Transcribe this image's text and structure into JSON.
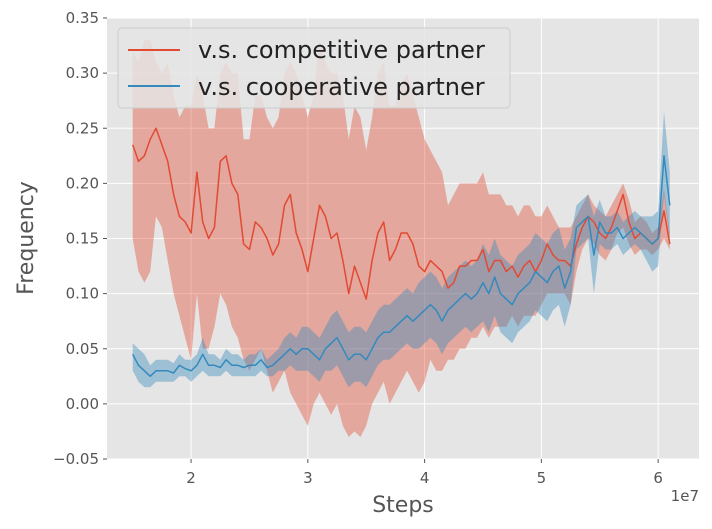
{
  "chart_data": {
    "type": "line",
    "xlabel": "Steps",
    "ylabel": "Frequency",
    "x_offset_label": "1e7",
    "xlim": [
      1.28,
      6.35
    ],
    "ylim": [
      -0.05,
      0.35
    ],
    "xticks": [
      2,
      3,
      4,
      5,
      6
    ],
    "xtick_labels": [
      "2",
      "3",
      "4",
      "5",
      "6"
    ],
    "yticks": [
      -0.05,
      0.0,
      0.05,
      0.1,
      0.15,
      0.2,
      0.25,
      0.3,
      0.35
    ],
    "ytick_labels": [
      "−0.05",
      "0.00",
      "0.05",
      "0.10",
      "0.15",
      "0.20",
      "0.25",
      "0.30",
      "0.35"
    ],
    "grid": true,
    "legend_position": "upper-left",
    "background": "#e5e5e5",
    "series": [
      {
        "name": "v.s. competitive partner",
        "color": "#e24a33",
        "x": [
          1.5,
          1.55,
          1.6,
          1.65,
          1.7,
          1.75,
          1.8,
          1.85,
          1.9,
          1.95,
          2.0,
          2.05,
          2.1,
          2.15,
          2.2,
          2.25,
          2.3,
          2.35,
          2.4,
          2.45,
          2.5,
          2.55,
          2.6,
          2.65,
          2.7,
          2.75,
          2.8,
          2.85,
          2.9,
          2.95,
          3.0,
          3.05,
          3.1,
          3.15,
          3.2,
          3.25,
          3.3,
          3.35,
          3.4,
          3.45,
          3.5,
          3.55,
          3.6,
          3.65,
          3.7,
          3.75,
          3.8,
          3.85,
          3.9,
          3.95,
          4.0,
          4.05,
          4.1,
          4.15,
          4.2,
          4.25,
          4.3,
          4.35,
          4.4,
          4.45,
          4.5,
          4.55,
          4.6,
          4.65,
          4.7,
          4.75,
          4.8,
          4.85,
          4.9,
          4.95,
          5.0,
          5.05,
          5.1,
          5.15,
          5.2,
          5.25,
          5.3,
          5.35,
          5.4,
          5.45,
          5.5,
          5.55,
          5.6,
          5.65,
          5.7,
          5.75,
          5.8,
          5.85,
          5.9,
          5.95,
          6.0,
          6.05,
          6.1
        ],
        "mean": [
          0.235,
          0.22,
          0.225,
          0.24,
          0.25,
          0.235,
          0.22,
          0.19,
          0.17,
          0.165,
          0.155,
          0.21,
          0.165,
          0.15,
          0.16,
          0.22,
          0.225,
          0.2,
          0.19,
          0.145,
          0.14,
          0.165,
          0.16,
          0.15,
          0.135,
          0.145,
          0.18,
          0.19,
          0.155,
          0.14,
          0.12,
          0.15,
          0.18,
          0.17,
          0.15,
          0.155,
          0.13,
          0.1,
          0.125,
          0.11,
          0.095,
          0.13,
          0.155,
          0.165,
          0.13,
          0.14,
          0.155,
          0.155,
          0.145,
          0.125,
          0.12,
          0.13,
          0.125,
          0.12,
          0.105,
          0.11,
          0.125,
          0.125,
          0.13,
          0.13,
          0.14,
          0.12,
          0.13,
          0.13,
          0.12,
          0.125,
          0.115,
          0.125,
          0.13,
          0.12,
          0.13,
          0.145,
          0.135,
          0.13,
          0.13,
          0.125,
          0.145,
          0.16,
          0.17,
          0.165,
          0.155,
          0.15,
          0.16,
          0.175,
          0.19,
          0.165,
          0.15,
          0.155,
          0.15,
          0.145,
          0.15,
          0.175,
          0.145
        ],
        "lower": [
          0.15,
          0.12,
          0.11,
          0.12,
          0.17,
          0.16,
          0.13,
          0.1,
          0.08,
          0.06,
          0.04,
          0.1,
          0.05,
          0.05,
          0.07,
          0.1,
          0.09,
          0.07,
          0.06,
          0.04,
          0.03,
          0.04,
          0.05,
          0.03,
          0.01,
          0.02,
          0.03,
          0.01,
          0.0,
          -0.01,
          -0.02,
          0.0,
          0.01,
          0.0,
          -0.01,
          0.0,
          -0.02,
          -0.03,
          -0.025,
          -0.03,
          -0.02,
          0.0,
          0.01,
          0.02,
          0.0,
          0.01,
          0.02,
          0.03,
          0.02,
          0.01,
          0.02,
          0.04,
          0.03,
          0.03,
          0.04,
          0.04,
          0.05,
          0.05,
          0.06,
          0.06,
          0.07,
          0.06,
          0.07,
          0.07,
          0.07,
          0.08,
          0.07,
          0.08,
          0.08,
          0.08,
          0.09,
          0.1,
          0.1,
          0.1,
          0.1,
          0.09,
          0.12,
          0.14,
          0.15,
          0.145,
          0.135,
          0.13,
          0.14,
          0.155,
          0.16,
          0.145,
          0.135,
          0.14,
          0.14,
          0.135,
          0.14,
          0.15,
          0.14
        ],
        "upper": [
          0.32,
          0.31,
          0.33,
          0.33,
          0.31,
          0.3,
          0.31,
          0.28,
          0.26,
          0.27,
          0.27,
          0.3,
          0.28,
          0.25,
          0.25,
          0.3,
          0.31,
          0.3,
          0.3,
          0.24,
          0.24,
          0.28,
          0.28,
          0.26,
          0.25,
          0.26,
          0.3,
          0.31,
          0.3,
          0.28,
          0.26,
          0.28,
          0.33,
          0.31,
          0.3,
          0.3,
          0.28,
          0.24,
          0.27,
          0.26,
          0.23,
          0.26,
          0.3,
          0.31,
          0.27,
          0.27,
          0.29,
          0.3,
          0.28,
          0.26,
          0.24,
          0.23,
          0.22,
          0.21,
          0.18,
          0.19,
          0.2,
          0.2,
          0.2,
          0.2,
          0.21,
          0.19,
          0.19,
          0.19,
          0.18,
          0.18,
          0.17,
          0.18,
          0.18,
          0.17,
          0.17,
          0.18,
          0.17,
          0.16,
          0.16,
          0.16,
          0.17,
          0.18,
          0.19,
          0.18,
          0.175,
          0.17,
          0.18,
          0.19,
          0.2,
          0.185,
          0.165,
          0.17,
          0.165,
          0.155,
          0.16,
          0.195,
          0.155
        ]
      },
      {
        "name": "v.s. cooperative partner",
        "color": "#348abd",
        "x": [
          1.5,
          1.55,
          1.6,
          1.65,
          1.7,
          1.75,
          1.8,
          1.85,
          1.9,
          1.95,
          2.0,
          2.05,
          2.1,
          2.15,
          2.2,
          2.25,
          2.3,
          2.35,
          2.4,
          2.45,
          2.5,
          2.55,
          2.6,
          2.65,
          2.7,
          2.75,
          2.8,
          2.85,
          2.9,
          2.95,
          3.0,
          3.05,
          3.1,
          3.15,
          3.2,
          3.25,
          3.3,
          3.35,
          3.4,
          3.45,
          3.5,
          3.55,
          3.6,
          3.65,
          3.7,
          3.75,
          3.8,
          3.85,
          3.9,
          3.95,
          4.0,
          4.05,
          4.1,
          4.15,
          4.2,
          4.25,
          4.3,
          4.35,
          4.4,
          4.45,
          4.5,
          4.55,
          4.6,
          4.65,
          4.7,
          4.75,
          4.8,
          4.85,
          4.9,
          4.95,
          5.0,
          5.05,
          5.1,
          5.15,
          5.2,
          5.25,
          5.3,
          5.35,
          5.4,
          5.45,
          5.5,
          5.55,
          5.6,
          5.65,
          5.7,
          5.75,
          5.8,
          5.85,
          5.9,
          5.95,
          6.0,
          6.05,
          6.1
        ],
        "mean": [
          0.045,
          0.035,
          0.03,
          0.025,
          0.03,
          0.03,
          0.03,
          0.028,
          0.035,
          0.032,
          0.03,
          0.035,
          0.045,
          0.035,
          0.035,
          0.033,
          0.04,
          0.035,
          0.035,
          0.033,
          0.035,
          0.035,
          0.04,
          0.033,
          0.035,
          0.04,
          0.045,
          0.05,
          0.045,
          0.05,
          0.05,
          0.045,
          0.04,
          0.05,
          0.055,
          0.06,
          0.05,
          0.04,
          0.045,
          0.045,
          0.04,
          0.05,
          0.06,
          0.065,
          0.065,
          0.07,
          0.075,
          0.08,
          0.075,
          0.08,
          0.085,
          0.09,
          0.085,
          0.075,
          0.085,
          0.09,
          0.095,
          0.1,
          0.095,
          0.1,
          0.11,
          0.1,
          0.115,
          0.1,
          0.095,
          0.09,
          0.1,
          0.105,
          0.11,
          0.12,
          0.115,
          0.11,
          0.12,
          0.125,
          0.105,
          0.12,
          0.16,
          0.165,
          0.17,
          0.135,
          0.165,
          0.155,
          0.155,
          0.16,
          0.15,
          0.155,
          0.16,
          0.155,
          0.15,
          0.145,
          0.15,
          0.225,
          0.18
        ],
        "lower": [
          0.03,
          0.02,
          0.015,
          0.015,
          0.02,
          0.02,
          0.02,
          0.02,
          0.025,
          0.025,
          0.02,
          0.025,
          0.03,
          0.025,
          0.025,
          0.025,
          0.03,
          0.025,
          0.025,
          0.025,
          0.025,
          0.025,
          0.03,
          0.025,
          0.025,
          0.03,
          0.03,
          0.035,
          0.03,
          0.03,
          0.03,
          0.025,
          0.02,
          0.03,
          0.03,
          0.035,
          0.025,
          0.015,
          0.02,
          0.02,
          0.015,
          0.025,
          0.035,
          0.04,
          0.04,
          0.045,
          0.05,
          0.055,
          0.05,
          0.05,
          0.055,
          0.06,
          0.055,
          0.045,
          0.055,
          0.06,
          0.065,
          0.07,
          0.065,
          0.07,
          0.075,
          0.065,
          0.08,
          0.065,
          0.06,
          0.055,
          0.065,
          0.07,
          0.075,
          0.085,
          0.08,
          0.075,
          0.085,
          0.09,
          0.07,
          0.09,
          0.14,
          0.145,
          0.15,
          0.1,
          0.145,
          0.14,
          0.14,
          0.145,
          0.135,
          0.14,
          0.145,
          0.14,
          0.13,
          0.12,
          0.125,
          0.19,
          0.15
        ],
        "upper": [
          0.055,
          0.05,
          0.045,
          0.035,
          0.04,
          0.04,
          0.04,
          0.037,
          0.045,
          0.04,
          0.04,
          0.045,
          0.06,
          0.045,
          0.045,
          0.04,
          0.05,
          0.045,
          0.045,
          0.04,
          0.045,
          0.045,
          0.05,
          0.04,
          0.045,
          0.05,
          0.06,
          0.065,
          0.06,
          0.07,
          0.07,
          0.065,
          0.06,
          0.07,
          0.08,
          0.085,
          0.075,
          0.065,
          0.07,
          0.07,
          0.065,
          0.075,
          0.085,
          0.09,
          0.09,
          0.095,
          0.1,
          0.105,
          0.1,
          0.11,
          0.115,
          0.12,
          0.115,
          0.105,
          0.115,
          0.12,
          0.125,
          0.13,
          0.125,
          0.13,
          0.145,
          0.135,
          0.15,
          0.135,
          0.13,
          0.125,
          0.135,
          0.14,
          0.145,
          0.155,
          0.15,
          0.145,
          0.155,
          0.16,
          0.14,
          0.15,
          0.18,
          0.185,
          0.19,
          0.17,
          0.185,
          0.17,
          0.17,
          0.175,
          0.165,
          0.17,
          0.175,
          0.17,
          0.17,
          0.17,
          0.175,
          0.265,
          0.21
        ]
      }
    ]
  }
}
